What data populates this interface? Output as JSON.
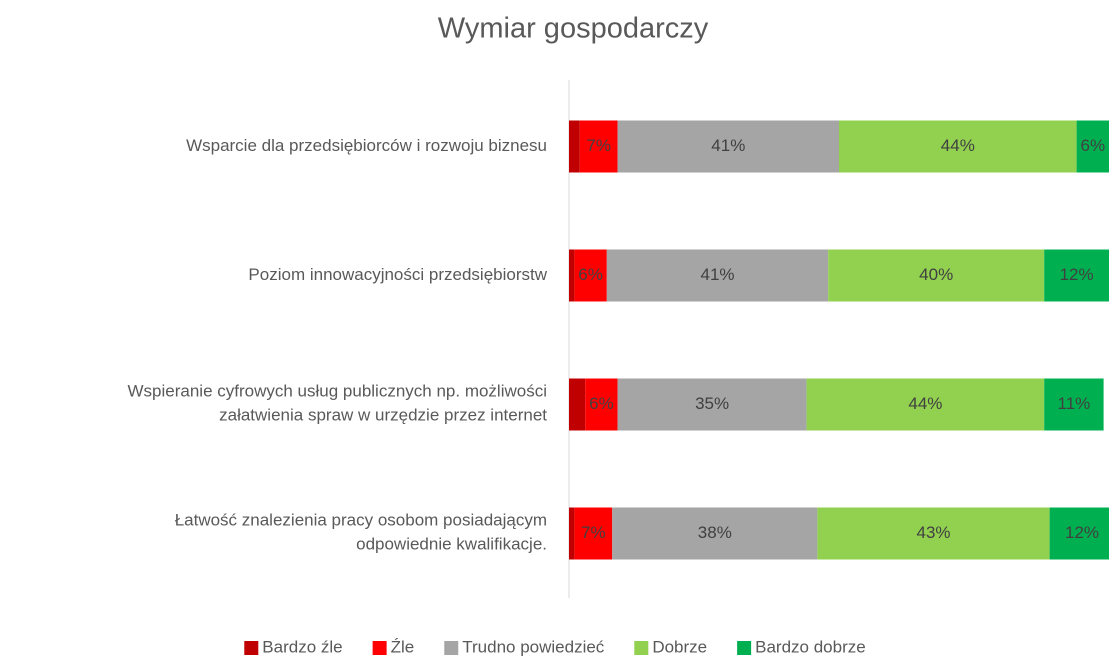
{
  "chart_data": {
    "type": "bar",
    "orientation": "horizontal",
    "stacked": true,
    "title": "Wymiar gospodarczy",
    "categories": [
      "Wsparcie dla przedsiębiorców i rozwoju biznesu",
      "Poziom innowacyjności przedsiębiorstw",
      "Wspieranie cyfrowych usług publicznych np. możliwości\nzałatwienia spraw w urzędzie przez internet",
      "Łatwość znalezienia pracy osobom posiadającym\nodpowiednie kwalifikacje."
    ],
    "series": [
      {
        "name": "Bardzo źle",
        "color": "#c00000",
        "values": [
          2,
          1,
          3,
          1
        ]
      },
      {
        "name": "Źle",
        "color": "#ff0000",
        "values": [
          7,
          6,
          6,
          7
        ],
        "value_labels": [
          "7%",
          "6%",
          "6%",
          "7%"
        ]
      },
      {
        "name": "Trudno powiedzieć",
        "color": "#a5a5a5",
        "values": [
          41,
          41,
          35,
          38
        ],
        "value_labels": [
          "41%",
          "41%",
          "35%",
          "38%"
        ]
      },
      {
        "name": "Dobrze",
        "color": "#92d050",
        "values": [
          44,
          40,
          44,
          43
        ],
        "value_labels": [
          "44%",
          "40%",
          "44%",
          "43%"
        ]
      },
      {
        "name": "Bardzo dobrze",
        "color": "#00b050",
        "values": [
          6,
          12,
          11,
          12
        ],
        "value_labels": [
          "6%",
          "12%",
          "11%",
          "12%"
        ]
      }
    ],
    "xlim": [
      0,
      100
    ],
    "legend": "bottom"
  }
}
